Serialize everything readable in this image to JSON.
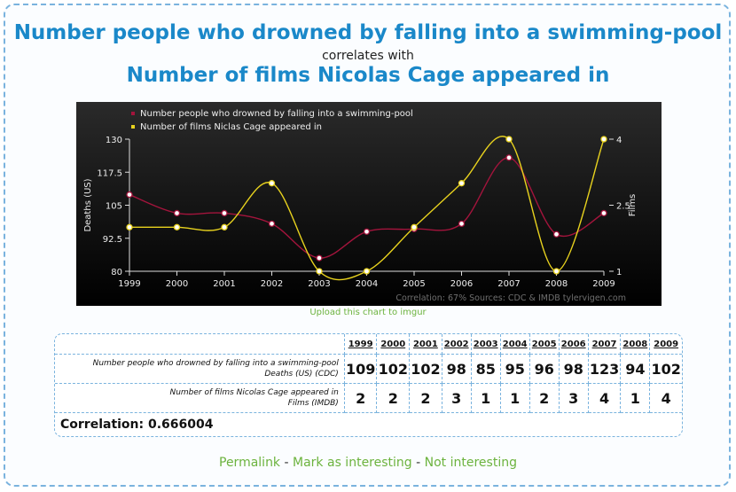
{
  "header": {
    "title1": "Number people who drowned by falling into a swimming-pool",
    "connector": "correlates with",
    "title2": "Number of films Nicolas Cage appeared in"
  },
  "chart_data": {
    "type": "line",
    "x": [
      1999,
      2000,
      2001,
      2002,
      2003,
      2004,
      2005,
      2006,
      2007,
      2008,
      2009
    ],
    "series": [
      {
        "name": "Number people who drowned by falling into a swimming-pool",
        "axis": "left",
        "color": "#a3143c",
        "values": [
          109,
          102,
          102,
          98,
          85,
          95,
          96,
          98,
          123,
          94,
          102
        ]
      },
      {
        "name": "Number of films Niclas Cage appeared in",
        "axis": "right",
        "color": "#e8d21e",
        "values": [
          2,
          2,
          2,
          3,
          1,
          1,
          2,
          3,
          4,
          1,
          4
        ]
      }
    ],
    "ylabel": "Deaths (US)",
    "y2label": "Films",
    "ylim": [
      80,
      130
    ],
    "yticks": [
      "80",
      "92.5",
      "105",
      "117.5",
      "130"
    ],
    "y2lim": [
      1,
      4
    ],
    "y2ticks": [
      "1",
      "2.5",
      "4"
    ],
    "footer": "Correlation: 67%    Sources: CDC & IMDB    tylervigen.com",
    "legend_position": "top-left",
    "grid": false
  },
  "upload_link": "Upload this chart to imgur",
  "table": {
    "years": [
      "1999",
      "2000",
      "2001",
      "2002",
      "2003",
      "2004",
      "2005",
      "2006",
      "2007",
      "2008",
      "2009"
    ],
    "rows": [
      {
        "label": "Number people who drowned by falling into a swimming-pool",
        "sublabel": "Deaths (US) (CDC)",
        "values": [
          "109",
          "102",
          "102",
          "98",
          "85",
          "95",
          "96",
          "98",
          "123",
          "94",
          "102"
        ]
      },
      {
        "label": "Number of films Nicolas Cage appeared in",
        "sublabel": "Films (IMDB)",
        "values": [
          "2",
          "2",
          "2",
          "3",
          "1",
          "1",
          "2",
          "3",
          "4",
          "1",
          "4"
        ]
      }
    ],
    "correlation": "Correlation: 0.666004"
  },
  "links": {
    "permalink": "Permalink",
    "interesting": "Mark as interesting",
    "not_interesting": "Not interesting",
    "separator": "-"
  }
}
